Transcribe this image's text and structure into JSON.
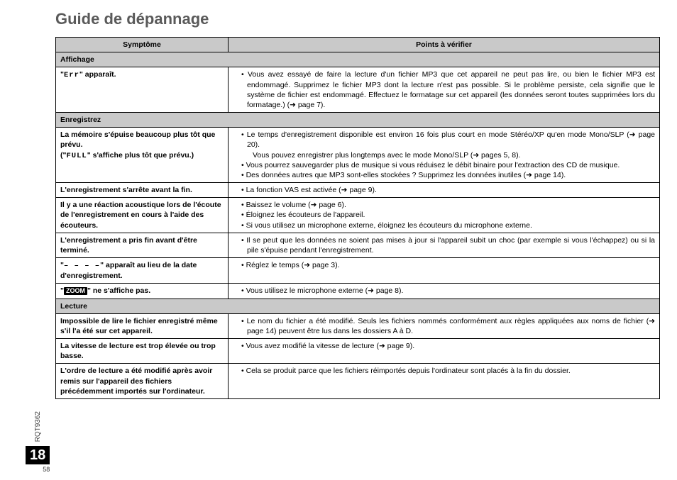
{
  "title": "Guide de dépannage",
  "headers": {
    "symptom": "Symptôme",
    "check": "Points à vérifier"
  },
  "sections": {
    "affichage": "Affichage",
    "enregistrez": "Enregistrez",
    "lecture": "Lecture"
  },
  "rows": {
    "err": {
      "sym_prefix": "\"",
      "sym_seg": "Err",
      "sym_suffix": "\" apparaît.",
      "pt1": "Vous avez essayé de faire la lecture d'un fichier MP3 que cet appareil ne peut pas lire, ou bien le fichier MP3 est endommagé. Supprimez le fichier MP3 dont la lecture n'est pas possible. Si le problème persiste, cela signifie que le système de fichier est endommagé. Effectuez le formatage sur cet appareil (les données seront toutes supprimées lors du formatage.) (➜ page 7)."
    },
    "mem": {
      "sym1": "La mémoire s'épuise beaucoup plus tôt que prévu.",
      "sym2_prefix": "(\"",
      "sym2_seg": "FULL",
      "sym2_suffix": "\" s'affiche plus tôt que prévu.)",
      "pt1": "Le temps d'enregistrement disponible est environ 16 fois plus court en mode Stéréo/XP qu'en mode Mono/SLP (➜ page 20).",
      "pt1sub": "Vous pouvez enregistrer plus longtemps avec le mode Mono/SLP (➜ pages 5, 8).",
      "pt2": "Vous pourrez sauvegarder plus de musique si vous réduisez le débit binaire pour l'extraction des CD de musique.",
      "pt3": "Des données autres que MP3 sont-elles stockées ? Supprimez les données inutiles (➜ page 14)."
    },
    "stopfin": {
      "sym": "L'enregistrement s'arrête avant la fin.",
      "pt1": "La fonction VAS est activée (➜ page 9)."
    },
    "feedback": {
      "sym": "Il y a une réaction acoustique lors de l'écoute de l'enregistrement en cours à l'aide des écouteurs.",
      "pt1": "Baissez le volume (➜ page 6).",
      "pt2": "Éloignez les écouteurs de l'appareil.",
      "pt3": "Si vous utilisez un microphone externe, éloignez les écouteurs du microphone externe."
    },
    "endearly": {
      "sym": "L'enregistrement a pris fin avant d'être terminé.",
      "pt1": "Il se peut que les données ne soient pas mises à jour si l'appareil subit un choc (par exemple si vous l'échappez) ou si la pile s'épuise pendant l'enregistrement."
    },
    "dashes": {
      "sym_prefix": "\"",
      "sym_seg": "– – – –",
      "sym_suffix": "\" apparaît au lieu de la date d'enregistrement.",
      "pt1": "Réglez le temps (➜ page 3)."
    },
    "zoom": {
      "sym_prefix": "\"",
      "sym_badge": "ZOOM",
      "sym_suffix": "\" ne s'affiche pas.",
      "pt1": "Vous utilisez le microphone externe (➜ page 8)."
    },
    "cantread": {
      "sym": "Impossible de lire le fichier enregistré même s'il l'a été sur cet appareil.",
      "pt1": "Le nom du fichier a été modifié. Seuls les fichiers nommés conformément aux règles appliquées aux noms de fichier (➜ page 14) peuvent être lus dans les dossiers A à D."
    },
    "speed": {
      "sym": "La vitesse de lecture est trop élevée ou trop basse.",
      "pt1": "Vous avez modifié la vitesse de lecture (➜ page 9)."
    },
    "order": {
      "sym": "L'ordre de lecture a été modifié après avoir remis sur l'appareil des fichiers précédemment importés sur l'ordinateur.",
      "pt1": "Cela se produit parce que les fichiers réimportés depuis l'ordinateur sont placés à la fin du dossier."
    }
  },
  "side": {
    "rqt": "RQT9362",
    "pagenum": "18",
    "pagenum_small": "58"
  }
}
